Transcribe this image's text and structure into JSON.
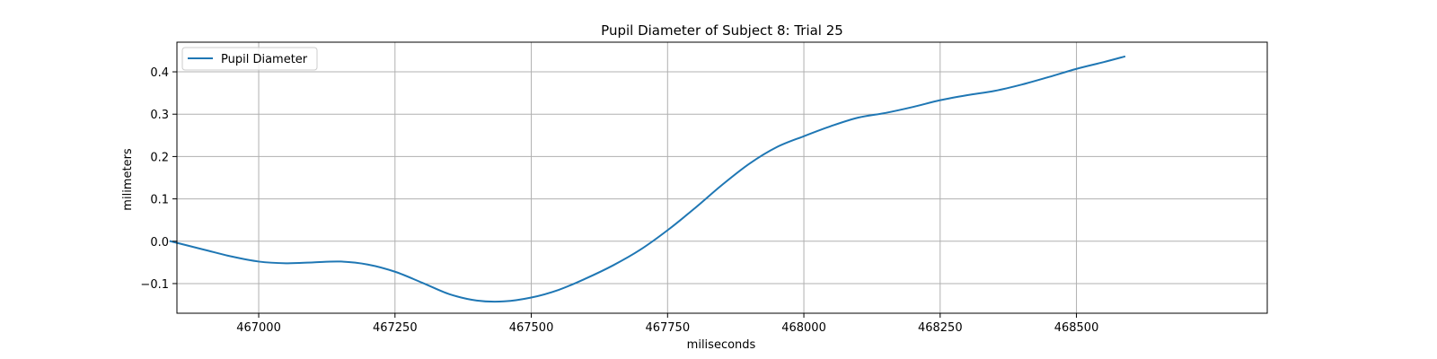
{
  "chart_data": {
    "type": "line",
    "title": "Pupil Diameter of Subject 8: Trial 25",
    "xlabel": "miliseconds",
    "ylabel": "milimeters",
    "xlim": [
      466850,
      468850
    ],
    "ylim": [
      -0.17,
      0.47
    ],
    "xticks": [
      467000,
      467250,
      467500,
      467750,
      468000,
      468250,
      468500
    ],
    "yticks": [
      -0.1,
      0.0,
      0.1,
      0.2,
      0.3,
      0.4
    ],
    "ytick_labels": [
      "−0.1",
      "0.0",
      "0.1",
      "0.2",
      "0.3",
      "0.4"
    ],
    "grid": true,
    "legend_position": "upper left",
    "colors": {
      "series": "#1f77b4",
      "grid": "#b0b0b0"
    },
    "series": [
      {
        "name": "Pupil Diameter",
        "x": [
          466838,
          466900,
          466950,
          467000,
          467050,
          467100,
          467150,
          467200,
          467250,
          467300,
          467350,
          467400,
          467450,
          467500,
          467550,
          467600,
          467650,
          467700,
          467750,
          467800,
          467850,
          467900,
          467950,
          468000,
          468050,
          468100,
          468150,
          468200,
          468250,
          468300,
          468350,
          468400,
          468450,
          468500,
          468550,
          468588
        ],
        "y": [
          0.0,
          -0.02,
          -0.036,
          -0.048,
          -0.052,
          -0.05,
          -0.048,
          -0.055,
          -0.072,
          -0.098,
          -0.125,
          -0.14,
          -0.142,
          -0.133,
          -0.115,
          -0.088,
          -0.057,
          -0.02,
          0.026,
          0.078,
          0.133,
          0.183,
          0.222,
          0.248,
          0.272,
          0.292,
          0.303,
          0.317,
          0.333,
          0.345,
          0.355,
          0.37,
          0.388,
          0.407,
          0.423,
          0.436
        ]
      }
    ]
  }
}
